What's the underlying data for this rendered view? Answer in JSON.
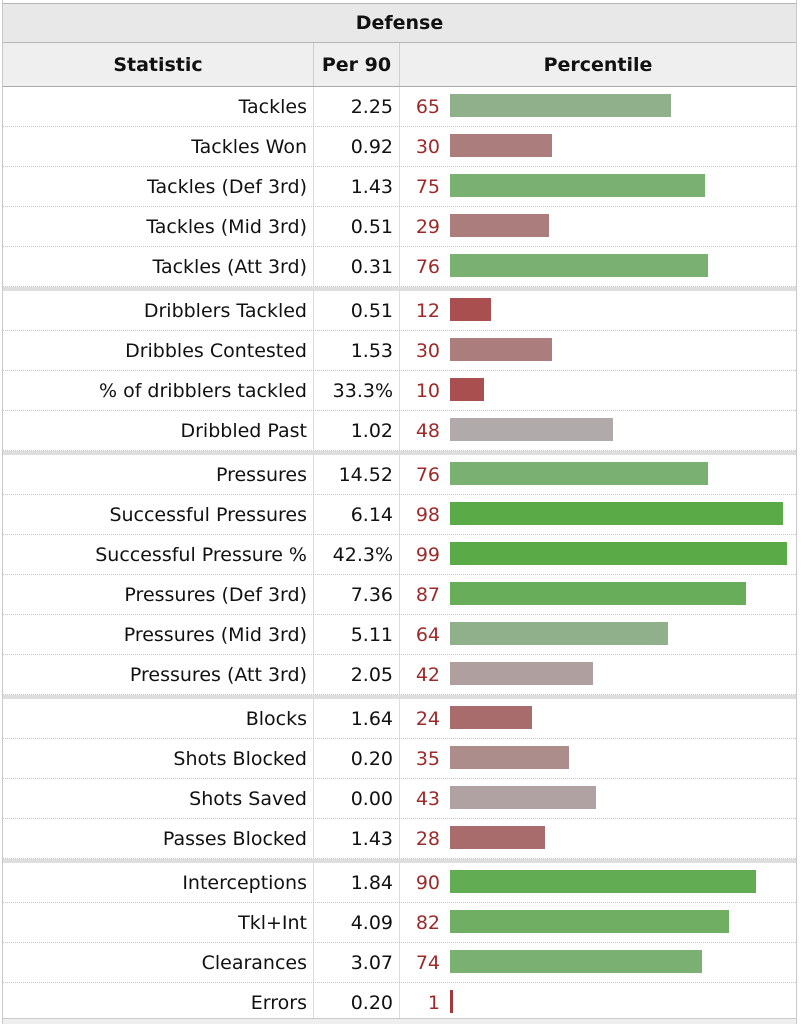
{
  "table": {
    "title": "Defense",
    "columns": {
      "statistic": "Statistic",
      "per90": "Per 90",
      "percentile": "Percentile"
    }
  },
  "chart_data": {
    "type": "bar",
    "title": "Defense",
    "xlabel": "Percentile",
    "ylabel": "Statistic",
    "xlim": [
      0,
      100
    ],
    "groups": [
      {
        "rows": [
          {
            "stat": "Tackles",
            "per90": "2.25",
            "percentile": 65,
            "color": "#8fb08a"
          },
          {
            "stat": "Tackles Won",
            "per90": "0.92",
            "percentile": 30,
            "color": "#ab7d7d"
          },
          {
            "stat": "Tackles (Def 3rd)",
            "per90": "1.43",
            "percentile": 75,
            "color": "#7bb073"
          },
          {
            "stat": "Tackles (Mid 3rd)",
            "per90": "0.51",
            "percentile": 29,
            "color": "#ab7d7d"
          },
          {
            "stat": "Tackles (Att 3rd)",
            "per90": "0.31",
            "percentile": 76,
            "color": "#7bb073"
          }
        ]
      },
      {
        "rows": [
          {
            "stat": "Dribblers Tackled",
            "per90": "0.51",
            "percentile": 12,
            "color": "#aa4f4f"
          },
          {
            "stat": "Dribbles Contested",
            "per90": "1.53",
            "percentile": 30,
            "color": "#ab7d7d"
          },
          {
            "stat": "% of dribblers tackled",
            "per90": "33.3%",
            "percentile": 10,
            "color": "#aa4f4f"
          },
          {
            "stat": "Dribbled Past",
            "per90": "1.02",
            "percentile": 48,
            "color": "#b0aaaa"
          }
        ]
      },
      {
        "rows": [
          {
            "stat": "Pressures",
            "per90": "14.52",
            "percentile": 76,
            "color": "#7bb073"
          },
          {
            "stat": "Successful Pressures",
            "per90": "6.14",
            "percentile": 98,
            "color": "#5aab48"
          },
          {
            "stat": "Successful Pressure %",
            "per90": "42.3%",
            "percentile": 99,
            "color": "#5aab48"
          },
          {
            "stat": "Pressures (Def 3rd)",
            "per90": "7.36",
            "percentile": 87,
            "color": "#67ad5a"
          },
          {
            "stat": "Pressures (Mid 3rd)",
            "per90": "5.11",
            "percentile": 64,
            "color": "#8fb08a"
          },
          {
            "stat": "Pressures (Att 3rd)",
            "per90": "2.05",
            "percentile": 42,
            "color": "#b09f9f"
          }
        ]
      },
      {
        "rows": [
          {
            "stat": "Blocks",
            "per90": "1.64",
            "percentile": 24,
            "color": "#a86c6c"
          },
          {
            "stat": "Shots Blocked",
            "per90": "0.20",
            "percentile": 35,
            "color": "#ad8c8c"
          },
          {
            "stat": "Shots Saved",
            "per90": "0.00",
            "percentile": 43,
            "color": "#b0a2a2"
          },
          {
            "stat": "Passes Blocked",
            "per90": "1.43",
            "percentile": 28,
            "color": "#a86c6c"
          }
        ]
      },
      {
        "rows": [
          {
            "stat": "Interceptions",
            "per90": "1.84",
            "percentile": 90,
            "color": "#62ad53"
          },
          {
            "stat": "Tkl+Int",
            "per90": "4.09",
            "percentile": 82,
            "color": "#6fae63"
          },
          {
            "stat": "Clearances",
            "per90": "3.07",
            "percentile": 74,
            "color": "#7bb073"
          },
          {
            "stat": "Errors",
            "per90": "0.20",
            "percentile": 1,
            "color": "#a33a3a"
          }
        ]
      }
    ]
  }
}
